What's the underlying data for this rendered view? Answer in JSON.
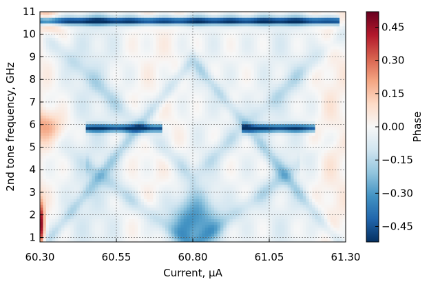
{
  "chart_data": {
    "type": "heatmap",
    "title": "",
    "xlabel": "Current, μA",
    "ylabel": "2nd tone frequency, GHz",
    "xlim": [
      60.3,
      61.3
    ],
    "ylim": [
      0.8,
      11.0
    ],
    "xticks": [
      "60.30",
      "60.55",
      "60.80",
      "61.05",
      "61.30"
    ],
    "yticks": [
      "1",
      "2",
      "3",
      "4",
      "5",
      "6",
      "7",
      "8",
      "9",
      "10",
      "11"
    ],
    "grid": true,
    "colormap": "RdBu_r",
    "colorbar": {
      "label": "Phase",
      "range": [
        -0.52,
        0.52
      ],
      "ticks": [
        "0.45",
        "0.30",
        "0.15",
        "0.00",
        "−0.15",
        "−0.30",
        "−0.45"
      ],
      "colors": [
        "#053061",
        "#2166ac",
        "#4393c3",
        "#92c5de",
        "#d1e5f0",
        "#f7f7f7",
        "#fddbc7",
        "#f4a582",
        "#d6604d",
        "#b2182b",
        "#67001f"
      ]
    },
    "features": [
      {
        "kind": "horizontal-line",
        "y": 10.6,
        "x_range": [
          60.3,
          61.28
        ],
        "value": -0.5
      },
      {
        "kind": "horizontal-line",
        "y": 5.85,
        "x_range": [
          60.45,
          60.7
        ],
        "value": -0.45
      },
      {
        "kind": "horizontal-line",
        "y": 5.85,
        "x_range": [
          60.96,
          61.2
        ],
        "value": -0.45
      },
      {
        "kind": "blob",
        "x": 60.8,
        "y": 1.7,
        "value": -0.3
      },
      {
        "kind": "blob",
        "x": 60.3,
        "y": 5.9,
        "value": 0.2
      },
      {
        "kind": "blob",
        "x": 60.3,
        "y": 10.5,
        "value": 0.15
      },
      {
        "kind": "blob",
        "x": 60.3,
        "y": 1.6,
        "value": 0.5
      }
    ]
  }
}
